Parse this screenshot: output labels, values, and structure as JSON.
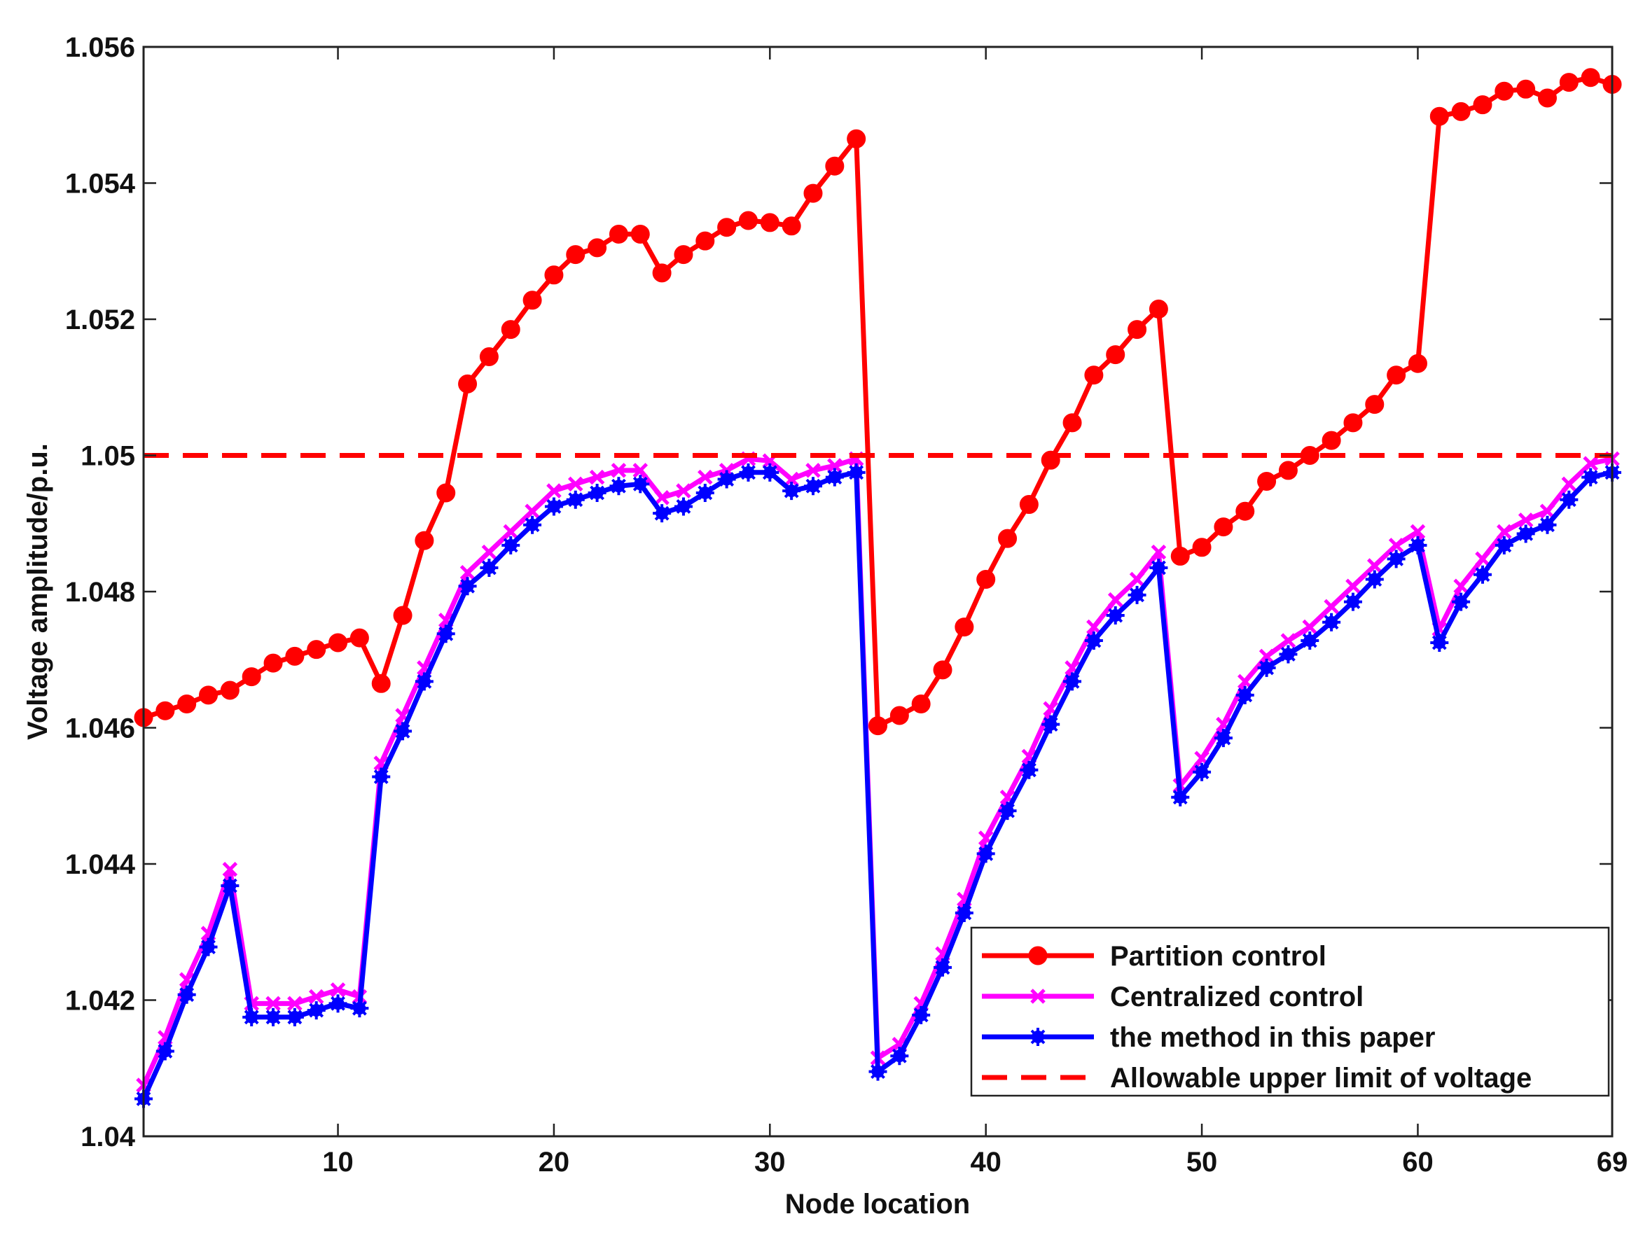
{
  "chart_data": {
    "type": "line",
    "xlabel": "Node location",
    "ylabel": "Voltage amplitude/p.u.",
    "xlim": [
      1,
      69
    ],
    "ylim": [
      1.04,
      1.056
    ],
    "xticks": [
      10,
      20,
      30,
      40,
      50,
      60,
      69
    ],
    "xtick_labels": [
      "10",
      "20",
      "30",
      "40",
      "50",
      "60",
      "69"
    ],
    "yticks": [
      1.04,
      1.042,
      1.044,
      1.046,
      1.048,
      1.05,
      1.052,
      1.054,
      1.056
    ],
    "ytick_labels": [
      "1.04",
      "1.042",
      "1.044",
      "1.046",
      "1.048",
      "1.05",
      "1.052",
      "1.054",
      "1.056"
    ],
    "grid": false,
    "legend_position": "bottom-right",
    "series": [
      {
        "name": "Partition control",
        "color": "#ff0000",
        "marker": "circle",
        "style": "solid",
        "y": [
          1.04615,
          1.04625,
          1.04635,
          1.04648,
          1.04655,
          1.04675,
          1.04695,
          1.04705,
          1.04715,
          1.04725,
          1.04732,
          1.04665,
          1.04765,
          1.04875,
          1.04945,
          1.05105,
          1.05145,
          1.05185,
          1.05228,
          1.05265,
          1.05295,
          1.05305,
          1.05325,
          1.05325,
          1.05268,
          1.05295,
          1.05315,
          1.05335,
          1.05345,
          1.05342,
          1.05337,
          1.05385,
          1.05425,
          1.05465,
          1.04603,
          1.04618,
          1.04635,
          1.04685,
          1.04748,
          1.04818,
          1.04878,
          1.04928,
          1.04993,
          1.05048,
          1.05118,
          1.05148,
          1.05185,
          1.05215,
          1.04852,
          1.04865,
          1.04895,
          1.04918,
          1.04962,
          1.04978,
          1.05,
          1.05022,
          1.05048,
          1.05075,
          1.05118,
          1.05135,
          1.05498,
          1.05505,
          1.05515,
          1.05535,
          1.05538,
          1.05525,
          1.05548,
          1.05555,
          1.05545
        ]
      },
      {
        "name": "Centralized control",
        "color": "#ff00ff",
        "marker": "x",
        "style": "solid",
        "y": [
          1.04075,
          1.04145,
          1.0423,
          1.04298,
          1.04392,
          1.04195,
          1.04195,
          1.04195,
          1.04205,
          1.04215,
          1.04205,
          1.04548,
          1.04618,
          1.04688,
          1.04758,
          1.04828,
          1.04858,
          1.04888,
          1.04918,
          1.04948,
          1.04958,
          1.04968,
          1.04978,
          1.04978,
          1.04938,
          1.04948,
          1.04968,
          1.04978,
          1.04995,
          1.04992,
          1.04965,
          1.04978,
          1.04985,
          1.04995,
          1.04115,
          1.04135,
          1.04195,
          1.04268,
          1.04348,
          1.04438,
          1.04498,
          1.04558,
          1.04628,
          1.04688,
          1.04748,
          1.04788,
          1.04818,
          1.04858,
          1.04515,
          1.04555,
          1.04605,
          1.04668,
          1.04705,
          1.04728,
          1.04748,
          1.04778,
          1.04808,
          1.04838,
          1.04868,
          1.04888,
          1.04745,
          1.04808,
          1.04848,
          1.04888,
          1.04905,
          1.04918,
          1.04958,
          1.04988,
          1.04995
        ]
      },
      {
        "name": "the method in this paper",
        "color": "#0000ff",
        "marker": "star",
        "style": "solid",
        "y": [
          1.04055,
          1.04125,
          1.04208,
          1.04278,
          1.04368,
          1.04175,
          1.04175,
          1.04175,
          1.04185,
          1.04195,
          1.04188,
          1.04528,
          1.04595,
          1.04668,
          1.04738,
          1.04808,
          1.04835,
          1.04868,
          1.04898,
          1.04925,
          1.04935,
          1.04945,
          1.04955,
          1.04958,
          1.04915,
          1.04925,
          1.04945,
          1.04965,
          1.04975,
          1.04975,
          1.04948,
          1.04955,
          1.04968,
          1.04975,
          1.04095,
          1.04118,
          1.04178,
          1.04248,
          1.04328,
          1.04415,
          1.04478,
          1.04538,
          1.04605,
          1.04668,
          1.04728,
          1.04765,
          1.04795,
          1.04835,
          1.04498,
          1.04535,
          1.04585,
          1.04648,
          1.04688,
          1.04708,
          1.04728,
          1.04755,
          1.04785,
          1.04818,
          1.04848,
          1.04868,
          1.04725,
          1.04785,
          1.04825,
          1.04868,
          1.04885,
          1.04898,
          1.04935,
          1.04968,
          1.04975
        ]
      },
      {
        "name": "Allowable upper limit of voltage",
        "color": "#ff0000",
        "marker": "none",
        "style": "dashed",
        "y": [
          1.05,
          1.05
        ]
      }
    ]
  }
}
